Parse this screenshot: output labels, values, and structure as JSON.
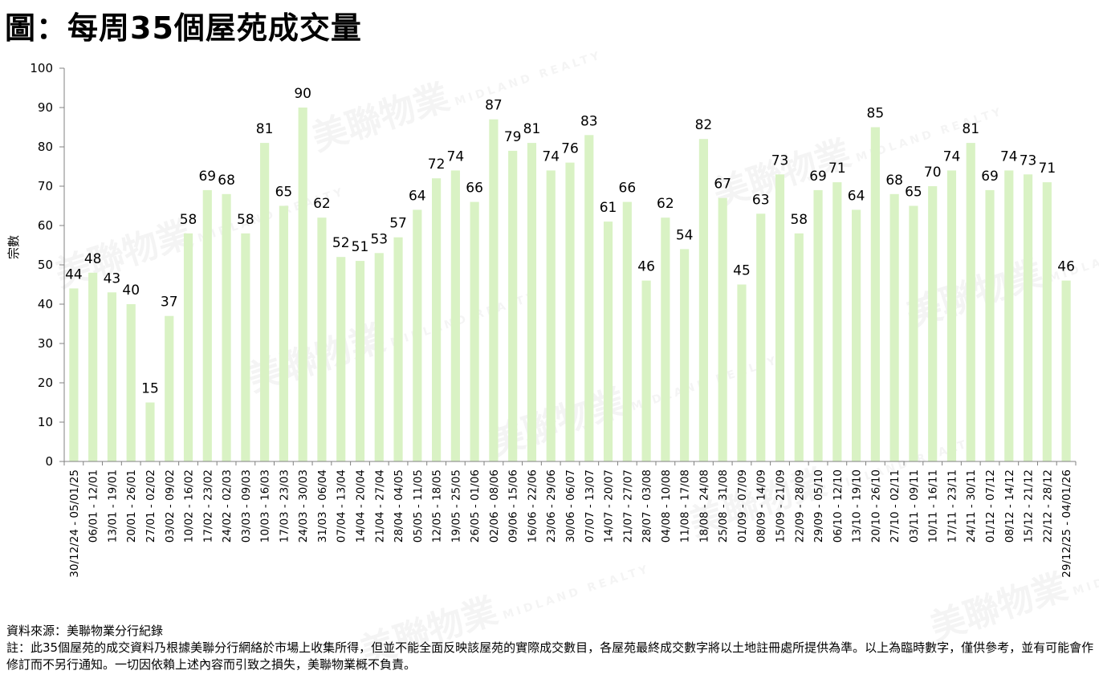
{
  "page": {
    "title": "圖：每周35個屋苑成交量",
    "source_note": "資料來源：美聯物業分行紀錄",
    "disclaimer": "註：此35個屋苑的成交資料乃根據美聯分行網絡於市場上收集所得，但並不能全面反映該屋苑的實際成交數目，各屋苑最終成交數字將以土地註冊處所提供為準。以上為臨時數字，僅供參考，並有可能會作修訂而不另行通知。一切因依賴上述內容而引致之損失，美聯物業概不負責。",
    "watermark_cn": "美聯物業",
    "watermark_en": "MIDLAND REALTY"
  },
  "chart_data": {
    "type": "bar",
    "title": "圖：每周35個屋苑成交量",
    "ylabel": "宗數",
    "xlabel": "",
    "ylim": [
      0,
      100
    ],
    "yticks": [
      0,
      10,
      20,
      30,
      40,
      50,
      60,
      70,
      80,
      90,
      100
    ],
    "grid": false,
    "bar_color": "#d9f2c4",
    "categories": [
      "30/12/24 - 05/01/25",
      "06/01 - 12/01",
      "13/01 - 19/01",
      "20/01 - 26/01",
      "27/01 - 02/02",
      "03/02 - 09/02",
      "10/02 - 16/02",
      "17/02 - 23/02",
      "24/02 - 02/03",
      "03/03 - 09/03",
      "10/03 - 16/03",
      "17/03 - 23/03",
      "24/03 - 30/03",
      "31/03 - 06/04",
      "07/04 - 13/04",
      "14/04 - 20/04",
      "21/04 - 27/04",
      "28/04 - 04/05",
      "05/05 - 11/05",
      "12/05 - 18/05",
      "19/05 - 25/05",
      "26/05 - 01/06",
      "02/06 - 08/06",
      "09/06 - 15/06",
      "16/06 - 22/06",
      "23/06 - 29/06",
      "30/06 - 06/07",
      "07/07 - 13/07",
      "14/07 - 20/07",
      "21/07 - 27/07",
      "28/07 - 03/08",
      "04/08 - 10/08",
      "11/08 - 17/08",
      "18/08 - 24/08",
      "25/08 - 31/08",
      "01/09 - 07/09",
      "08/09 - 14/09",
      "15/09 - 21/09",
      "22/09 - 28/09",
      "29/09 - 05/10",
      "06/10 - 12/10",
      "13/10 - 19/10",
      "20/10 - 26/10",
      "27/10 - 02/11",
      "03/11 - 09/11",
      "10/11 - 16/11",
      "17/11 - 23/11",
      "24/11 - 30/11",
      "01/12 - 07/12",
      "08/12 - 14/12",
      "15/12 - 21/12",
      "22/12 - 28/12",
      "29/12/25 - 04/01/26"
    ],
    "values": [
      44,
      48,
      43,
      40,
      15,
      37,
      58,
      69,
      68,
      58,
      81,
      65,
      90,
      62,
      52,
      51,
      53,
      57,
      64,
      72,
      74,
      66,
      87,
      79,
      81,
      74,
      76,
      83,
      61,
      66,
      46,
      62,
      54,
      82,
      67,
      45,
      63,
      73,
      58,
      69,
      71,
      64,
      85,
      68,
      65,
      70,
      74,
      81,
      69,
      74,
      73,
      71,
      46
    ]
  }
}
